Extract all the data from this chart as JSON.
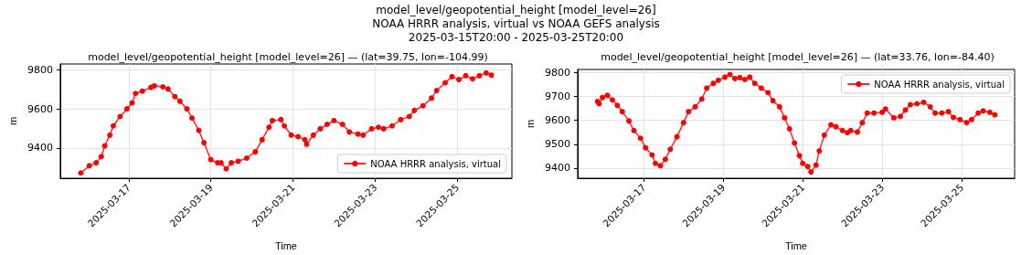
{
  "chart_data": [
    {
      "type": "line",
      "title": "model_level/geopotential_height [model_level=26] — (lat=39.75, lon=-104.99)",
      "annotations": [
        "model_level/geopotential_height [model_level=26]\nNOAA HRRR analysis, virtual vs NOAA GEFS analysis\n2025-03-15T20:00 - 2025-03-25T20:00"
      ],
      "xlabel": "Time",
      "ylabel": "m",
      "xlim": [
        "2025-03-15T08:00",
        "2025-03-26T08:00"
      ],
      "xticks": [
        "2025-03-17",
        "2025-03-19",
        "2025-03-21",
        "2025-03-23",
        "2025-03-25"
      ],
      "ylim": [
        9245,
        9830
      ],
      "yticks": [
        9400,
        9600,
        9800
      ],
      "grid": true,
      "legend": "bottom right",
      "marker": "circle",
      "line_style": "solid",
      "series": [
        {
          "name": "NOAA HRRR analysis, virtual",
          "color": "#ff0000",
          "x": [
            "2025-03-15T20:00",
            "2025-03-16T01:00",
            "2025-03-16T05:00",
            "2025-03-16T08:00",
            "2025-03-16T10:00",
            "2025-03-16T13:00",
            "2025-03-16T15:00",
            "2025-03-16T19:00",
            "2025-03-16T23:00",
            "2025-03-17T02:00",
            "2025-03-17T04:00",
            "2025-03-17T08:00",
            "2025-03-17T13:00",
            "2025-03-17T15:00",
            "2025-03-17T20:00",
            "2025-03-17T23:00",
            "2025-03-18T03:00",
            "2025-03-18T06:00",
            "2025-03-18T10:00",
            "2025-03-18T13:00",
            "2025-03-18T17:00",
            "2025-03-18T20:00",
            "2025-03-19T00:00",
            "2025-03-19T04:00",
            "2025-03-19T06:00",
            "2025-03-19T09:00",
            "2025-03-19T12:00",
            "2025-03-19T16:00",
            "2025-03-19T21:00",
            "2025-03-20T02:00",
            "2025-03-20T06:00",
            "2025-03-20T10:00",
            "2025-03-20T12:00",
            "2025-03-20T17:00",
            "2025-03-20T19:00",
            "2025-03-20T23:00",
            "2025-03-21T03:00",
            "2025-03-21T07:00",
            "2025-03-21T08:00",
            "2025-03-21T12:00",
            "2025-03-21T16:00",
            "2025-03-21T20:00",
            "2025-03-22T00:00",
            "2025-03-22T05:00",
            "2025-03-22T09:00",
            "2025-03-22T14:00",
            "2025-03-22T17:00",
            "2025-03-22T22:00",
            "2025-03-23T02:00",
            "2025-03-23T05:00",
            "2025-03-23T10:00",
            "2025-03-23T15:00",
            "2025-03-23T20:00",
            "2025-03-23T23:00",
            "2025-03-24T04:00",
            "2025-03-24T09:00",
            "2025-03-24T12:00",
            "2025-03-24T17:00",
            "2025-03-24T21:00",
            "2025-03-25T01:00",
            "2025-03-25T05:00",
            "2025-03-25T09:00",
            "2025-03-25T13:00",
            "2025-03-25T17:00",
            "2025-03-25T20:00"
          ],
          "values": [
            9272,
            9309,
            9324,
            9356,
            9411,
            9466,
            9513,
            9561,
            9600,
            9631,
            9679,
            9691,
            9710,
            9718,
            9713,
            9702,
            9663,
            9639,
            9600,
            9553,
            9490,
            9427,
            9340,
            9324,
            9324,
            9293,
            9324,
            9332,
            9348,
            9380,
            9442,
            9506,
            9540,
            9545,
            9513,
            9466,
            9458,
            9442,
            9419,
            9466,
            9498,
            9521,
            9540,
            9521,
            9482,
            9471,
            9466,
            9498,
            9506,
            9498,
            9513,
            9545,
            9561,
            9592,
            9616,
            9655,
            9694,
            9734,
            9765,
            9750,
            9770,
            9754,
            9770,
            9784,
            9773
          ]
        }
      ]
    },
    {
      "type": "line",
      "title": "model_level/geopotential_height [model_level=26] — (lat=33.76, lon=-84.40)",
      "xlabel": "Time",
      "ylabel": "m",
      "xlim": [
        "2025-03-15T08:00",
        "2025-03-26T08:00"
      ],
      "xticks": [
        "2025-03-17",
        "2025-03-19",
        "2025-03-21",
        "2025-03-23",
        "2025-03-25"
      ],
      "ylim": [
        9358,
        9812
      ],
      "yticks": [
        9400,
        9500,
        9600,
        9700,
        9800
      ],
      "grid": true,
      "legend": "top right",
      "marker": "circle",
      "line_style": "solid",
      "series": [
        {
          "name": "NOAA HRRR analysis, virtual",
          "color": "#ff0000",
          "x": [
            "2025-03-15T20:00",
            "2025-03-15T21:00",
            "2025-03-15T23:00",
            "2025-03-16T02:00",
            "2025-03-16T05:00",
            "2025-03-16T08:00",
            "2025-03-16T11:00",
            "2025-03-16T15:00",
            "2025-03-16T18:00",
            "2025-03-16T22:00",
            "2025-03-17T01:00",
            "2025-03-17T05:00",
            "2025-03-17T07:00",
            "2025-03-17T10:00",
            "2025-03-17T13:00",
            "2025-03-17T16:00",
            "2025-03-17T20:00",
            "2025-03-18T00:00",
            "2025-03-18T03:00",
            "2025-03-18T07:00",
            "2025-03-18T11:00",
            "2025-03-18T14:00",
            "2025-03-18T18:00",
            "2025-03-18T21:00",
            "2025-03-19T01:00",
            "2025-03-19T04:00",
            "2025-03-19T07:00",
            "2025-03-19T10:00",
            "2025-03-19T13:00",
            "2025-03-19T16:00",
            "2025-03-19T19:00",
            "2025-03-19T23:00",
            "2025-03-20T03:00",
            "2025-03-20T06:00",
            "2025-03-20T10:00",
            "2025-03-20T13:00",
            "2025-03-20T16:00",
            "2025-03-20T19:00",
            "2025-03-20T22:00",
            "2025-03-21T00:00",
            "2025-03-21T03:00",
            "2025-03-21T05:00",
            "2025-03-21T08:00",
            "2025-03-21T10:00",
            "2025-03-21T13:00",
            "2025-03-21T17:00",
            "2025-03-21T20:00",
            "2025-03-22T00:00",
            "2025-03-22T03:00",
            "2025-03-22T05:00",
            "2025-03-22T09:00",
            "2025-03-22T12:00",
            "2025-03-22T15:00",
            "2025-03-22T19:00",
            "2025-03-23T00:00",
            "2025-03-23T02:00",
            "2025-03-23T07:00",
            "2025-03-23T11:00",
            "2025-03-23T14:00",
            "2025-03-23T17:00",
            "2025-03-23T21:00",
            "2025-03-24T01:00",
            "2025-03-24T05:00",
            "2025-03-24T08:00",
            "2025-03-24T12:00",
            "2025-03-24T16:00",
            "2025-03-24T19:00",
            "2025-03-24T23:00",
            "2025-03-25T03:00",
            "2025-03-25T06:00",
            "2025-03-25T10:00",
            "2025-03-25T13:00",
            "2025-03-25T17:00",
            "2025-03-25T20:00"
          ],
          "values": [
            9678,
            9669,
            9695,
            9704,
            9685,
            9662,
            9636,
            9597,
            9557,
            9525,
            9485,
            9455,
            9420,
            9410,
            9437,
            9479,
            9531,
            9590,
            9636,
            9656,
            9689,
            9734,
            9754,
            9767,
            9780,
            9791,
            9774,
            9778,
            9770,
            9780,
            9754,
            9734,
            9715,
            9682,
            9656,
            9610,
            9564,
            9505,
            9452,
            9420,
            9407,
            9384,
            9413,
            9472,
            9538,
            9581,
            9573,
            9557,
            9548,
            9557,
            9551,
            9590,
            9630,
            9630,
            9633,
            9647,
            9610,
            9616,
            9643,
            9665,
            9669,
            9675,
            9656,
            9630,
            9630,
            9636,
            9612,
            9603,
            9590,
            9603,
            9630,
            9639,
            9633,
            9623
          ]
        }
      ]
    }
  ]
}
